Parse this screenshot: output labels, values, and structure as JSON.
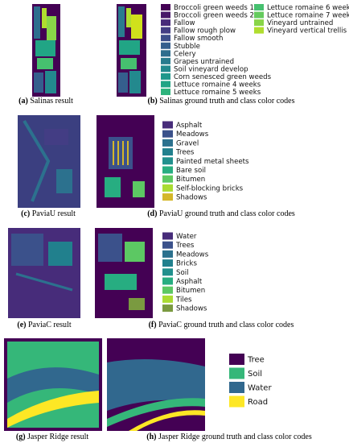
{
  "panels": [
    {
      "label": "(a)",
      "caption": "Salinas result"
    },
    {
      "label": "(b)",
      "caption": "Salinas ground truth and class color codes"
    },
    {
      "label": "(c)",
      "caption": "PaviaU result"
    },
    {
      "label": "(d)",
      "caption": "PaviaU ground truth and class color codes"
    },
    {
      "label": "(e)",
      "caption": "PaviaC result"
    },
    {
      "label": "(f)",
      "caption": "PaviaC ground truth and class color codes"
    },
    {
      "label": "(g)",
      "caption": "Jasper Ridge result"
    },
    {
      "label": "(h)",
      "caption": "Jasper Ridge ground truth and class color codes"
    }
  ],
  "legends": {
    "salinas": [
      {
        "name": "Broccoli green weeds 1",
        "color": "#440154"
      },
      {
        "name": "Broccoli green weeds 2",
        "color": "#481769"
      },
      {
        "name": "Fallow",
        "color": "#472a7a"
      },
      {
        "name": "Fallow rough plow",
        "color": "#433d84"
      },
      {
        "name": "Fallow smooth",
        "color": "#3d4e8a"
      },
      {
        "name": "Stubble",
        "color": "#355e8d"
      },
      {
        "name": "Celery",
        "color": "#2e6d8e"
      },
      {
        "name": "Grapes untrained",
        "color": "#297b8e"
      },
      {
        "name": "Soil vineyard develop",
        "color": "#23898e"
      },
      {
        "name": "Corn senesced green weeds",
        "color": "#1f978b"
      },
      {
        "name": "Lettuce romaine 4 weeks",
        "color": "#21a585"
      },
      {
        "name": "Lettuce romaine 5 weeks",
        "color": "#2eb37c"
      },
      {
        "name": "Lettuce romaine 6 weeks",
        "color": "#46c06f"
      },
      {
        "name": "Lettuce romaine 7 weeks",
        "color": "#65cb5e"
      },
      {
        "name": "Vineyard untrained",
        "color": "#89d548"
      },
      {
        "name": "Vineyard vertical trellis",
        "color": "#b0dd2f"
      }
    ],
    "paviau": [
      {
        "name": "Asphalt",
        "color": "#472c7a"
      },
      {
        "name": "Meadows",
        "color": "#3b518b"
      },
      {
        "name": "Gravel",
        "color": "#2c718e"
      },
      {
        "name": "Trees",
        "color": "#21808d"
      },
      {
        "name": "Painted metal sheets",
        "color": "#21908d"
      },
      {
        "name": "Bare soil",
        "color": "#27ad81"
      },
      {
        "name": "Bitumen",
        "color": "#5cc863"
      },
      {
        "name": "Self-blocking bricks",
        "color": "#aadc32"
      },
      {
        "name": "Shadows",
        "color": "#d4b72a"
      }
    ],
    "paviac": [
      {
        "name": "Water",
        "color": "#472c7a"
      },
      {
        "name": "Trees",
        "color": "#3b518b"
      },
      {
        "name": "Meadows",
        "color": "#2c718e"
      },
      {
        "name": "Bricks",
        "color": "#21808d"
      },
      {
        "name": "Soil",
        "color": "#21908d"
      },
      {
        "name": "Asphalt",
        "color": "#27ad81"
      },
      {
        "name": "Bitumen",
        "color": "#5cc863"
      },
      {
        "name": "Tiles",
        "color": "#aadc32"
      },
      {
        "name": "Shadows",
        "color": "#7a9a40"
      }
    ],
    "jasper": [
      {
        "name": "Tree",
        "color": "#440154"
      },
      {
        "name": "Soil",
        "color": "#35b779"
      },
      {
        "name": "Water",
        "color": "#31688e"
      },
      {
        "name": "Road",
        "color": "#fde725"
      }
    ]
  }
}
